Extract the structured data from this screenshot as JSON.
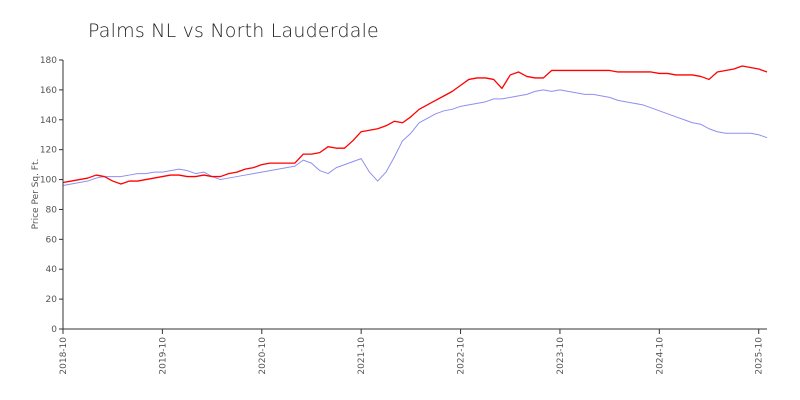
{
  "chart_data": {
    "type": "line",
    "title": "Palms NL vs North Lauderdale",
    "xlabel": "",
    "ylabel": "Price Per Sq. Ft.",
    "ylim": [
      0,
      180
    ],
    "yticks": [
      0,
      20,
      40,
      60,
      80,
      100,
      120,
      140,
      160,
      180
    ],
    "xticks": [
      "2018-10",
      "2019-10",
      "2020-10",
      "2021-10",
      "2022-10",
      "2023-10",
      "2024-10",
      "2025-10"
    ],
    "x_range": [
      "2018-10",
      "2025-11"
    ],
    "grid": false,
    "legend": "none",
    "series": [
      {
        "color": "#ff0000",
        "points": [
          [
            "2018-10",
            98
          ],
          [
            "2018-11",
            99
          ],
          [
            "2018-12",
            100
          ],
          [
            "2019-01",
            101
          ],
          [
            "2019-02",
            103
          ],
          [
            "2019-03",
            102
          ],
          [
            "2019-04",
            99
          ],
          [
            "2019-05",
            97
          ],
          [
            "2019-06",
            99
          ],
          [
            "2019-07",
            99
          ],
          [
            "2019-08",
            100
          ],
          [
            "2019-09",
            101
          ],
          [
            "2019-10",
            102
          ],
          [
            "2019-11",
            103
          ],
          [
            "2019-12",
            103
          ],
          [
            "2020-01",
            102
          ],
          [
            "2020-02",
            102
          ],
          [
            "2020-03",
            103
          ],
          [
            "2020-04",
            102
          ],
          [
            "2020-05",
            102
          ],
          [
            "2020-06",
            104
          ],
          [
            "2020-07",
            105
          ],
          [
            "2020-08",
            107
          ],
          [
            "2020-09",
            108
          ],
          [
            "2020-10",
            110
          ],
          [
            "2020-11",
            111
          ],
          [
            "2020-12",
            111
          ],
          [
            "2021-01",
            111
          ],
          [
            "2021-02",
            111
          ],
          [
            "2021-03",
            117
          ],
          [
            "2021-04",
            117
          ],
          [
            "2021-05",
            118
          ],
          [
            "2021-06",
            122
          ],
          [
            "2021-07",
            121
          ],
          [
            "2021-08",
            121
          ],
          [
            "2021-09",
            126
          ],
          [
            "2021-10",
            132
          ],
          [
            "2021-11",
            133
          ],
          [
            "2021-12",
            134
          ],
          [
            "2022-01",
            136
          ],
          [
            "2022-02",
            139
          ],
          [
            "2022-03",
            138
          ],
          [
            "2022-04",
            142
          ],
          [
            "2022-05",
            147
          ],
          [
            "2022-06",
            150
          ],
          [
            "2022-07",
            153
          ],
          [
            "2022-08",
            156
          ],
          [
            "2022-09",
            159
          ],
          [
            "2022-10",
            163
          ],
          [
            "2022-11",
            167
          ],
          [
            "2022-12",
            168
          ],
          [
            "2023-01",
            168
          ],
          [
            "2023-02",
            167
          ],
          [
            "2023-03",
            161
          ],
          [
            "2023-04",
            170
          ],
          [
            "2023-05",
            172
          ],
          [
            "2023-06",
            169
          ],
          [
            "2023-07",
            168
          ],
          [
            "2023-08",
            168
          ],
          [
            "2023-09",
            173
          ],
          [
            "2023-10",
            173
          ],
          [
            "2023-11",
            173
          ],
          [
            "2023-12",
            173
          ],
          [
            "2024-01",
            173
          ],
          [
            "2024-02",
            173
          ],
          [
            "2024-03",
            173
          ],
          [
            "2024-04",
            173
          ],
          [
            "2024-05",
            172
          ],
          [
            "2024-06",
            172
          ],
          [
            "2024-07",
            172
          ],
          [
            "2024-08",
            172
          ],
          [
            "2024-09",
            172
          ],
          [
            "2024-10",
            171
          ],
          [
            "2024-11",
            171
          ],
          [
            "2024-12",
            170
          ],
          [
            "2025-01",
            170
          ],
          [
            "2025-02",
            170
          ],
          [
            "2025-03",
            169
          ],
          [
            "2025-04",
            167
          ],
          [
            "2025-05",
            172
          ],
          [
            "2025-06",
            173
          ],
          [
            "2025-07",
            174
          ],
          [
            "2025-08",
            176
          ],
          [
            "2025-09",
            175
          ],
          [
            "2025-10",
            174
          ],
          [
            "2025-11",
            172
          ]
        ]
      },
      {
        "color": "#8f8ff0",
        "points": [
          [
            "2018-10",
            96
          ],
          [
            "2018-11",
            97
          ],
          [
            "2018-12",
            98
          ],
          [
            "2019-01",
            99
          ],
          [
            "2019-02",
            101
          ],
          [
            "2019-03",
            102
          ],
          [
            "2019-04",
            102
          ],
          [
            "2019-05",
            102
          ],
          [
            "2019-06",
            103
          ],
          [
            "2019-07",
            104
          ],
          [
            "2019-08",
            104
          ],
          [
            "2019-09",
            105
          ],
          [
            "2019-10",
            105
          ],
          [
            "2019-11",
            106
          ],
          [
            "2019-12",
            107
          ],
          [
            "2020-01",
            106
          ],
          [
            "2020-02",
            104
          ],
          [
            "2020-03",
            105
          ],
          [
            "2020-04",
            102
          ],
          [
            "2020-05",
            100
          ],
          [
            "2020-06",
            101
          ],
          [
            "2020-07",
            102
          ],
          [
            "2020-08",
            103
          ],
          [
            "2020-09",
            104
          ],
          [
            "2020-10",
            105
          ],
          [
            "2020-11",
            106
          ],
          [
            "2020-12",
            107
          ],
          [
            "2021-01",
            108
          ],
          [
            "2021-02",
            109
          ],
          [
            "2021-03",
            113
          ],
          [
            "2021-04",
            111
          ],
          [
            "2021-05",
            106
          ],
          [
            "2021-06",
            104
          ],
          [
            "2021-07",
            108
          ],
          [
            "2021-08",
            110
          ],
          [
            "2021-09",
            112
          ],
          [
            "2021-10",
            114
          ],
          [
            "2021-11",
            105
          ],
          [
            "2021-12",
            99
          ],
          [
            "2022-01",
            105
          ],
          [
            "2022-02",
            115
          ],
          [
            "2022-03",
            126
          ],
          [
            "2022-04",
            131
          ],
          [
            "2022-05",
            138
          ],
          [
            "2022-06",
            141
          ],
          [
            "2022-07",
            144
          ],
          [
            "2022-08",
            146
          ],
          [
            "2022-09",
            147
          ],
          [
            "2022-10",
            149
          ],
          [
            "2022-11",
            150
          ],
          [
            "2022-12",
            151
          ],
          [
            "2023-01",
            152
          ],
          [
            "2023-02",
            154
          ],
          [
            "2023-03",
            154
          ],
          [
            "2023-04",
            155
          ],
          [
            "2023-05",
            156
          ],
          [
            "2023-06",
            157
          ],
          [
            "2023-07",
            159
          ],
          [
            "2023-08",
            160
          ],
          [
            "2023-09",
            159
          ],
          [
            "2023-10",
            160
          ],
          [
            "2023-11",
            159
          ],
          [
            "2023-12",
            158
          ],
          [
            "2024-01",
            157
          ],
          [
            "2024-02",
            157
          ],
          [
            "2024-03",
            156
          ],
          [
            "2024-04",
            155
          ],
          [
            "2024-05",
            153
          ],
          [
            "2024-06",
            152
          ],
          [
            "2024-07",
            151
          ],
          [
            "2024-08",
            150
          ],
          [
            "2024-09",
            148
          ],
          [
            "2024-10",
            146
          ],
          [
            "2024-11",
            144
          ],
          [
            "2024-12",
            142
          ],
          [
            "2025-01",
            140
          ],
          [
            "2025-02",
            138
          ],
          [
            "2025-03",
            137
          ],
          [
            "2025-04",
            134
          ],
          [
            "2025-05",
            132
          ],
          [
            "2025-06",
            131
          ],
          [
            "2025-07",
            131
          ],
          [
            "2025-08",
            131
          ],
          [
            "2025-09",
            131
          ],
          [
            "2025-10",
            130
          ],
          [
            "2025-11",
            128
          ]
        ]
      }
    ]
  }
}
